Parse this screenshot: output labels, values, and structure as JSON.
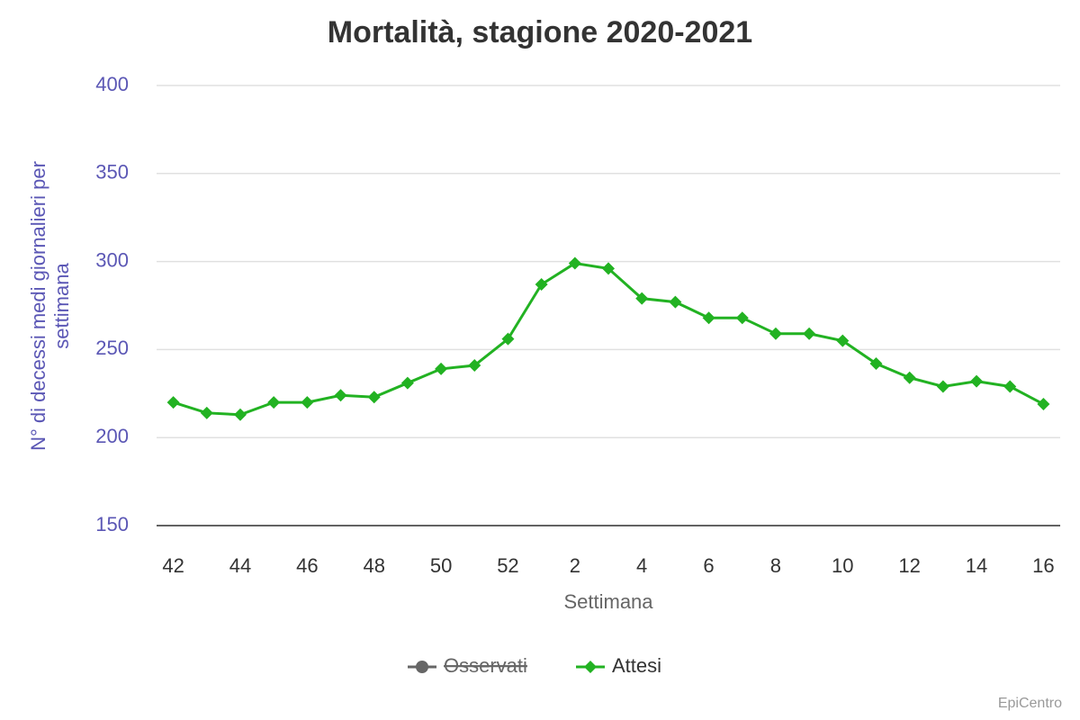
{
  "chart_data": {
    "type": "line",
    "title": "Mortalità, stagione 2020-2021",
    "x_label": "Settimana",
    "y_label": [
      "N° di decessi medi giornalieri per",
      "settimana"
    ],
    "credits": "EpiCentro",
    "categories": [
      "42",
      null,
      "44",
      null,
      "46",
      null,
      "48",
      null,
      "50",
      null,
      "52",
      null,
      "2",
      null,
      "4",
      null,
      "6",
      null,
      "8",
      null,
      "10",
      null,
      "12",
      null,
      "14",
      null,
      "16"
    ],
    "series": [
      {
        "name": "Osservati",
        "color": "#666666",
        "visible": false
      },
      {
        "name": "Attesi",
        "color": "#22b222",
        "visible": true,
        "values": [
          220,
          214,
          213,
          220,
          220,
          224,
          223,
          231,
          239,
          241,
          256,
          287,
          299,
          296,
          279,
          277,
          268,
          268,
          259,
          259,
          255,
          242,
          234,
          229,
          232,
          229,
          219
        ]
      }
    ],
    "ylim": [
      150,
      400
    ],
    "yticks": [
      150,
      200,
      250,
      300,
      350,
      400
    ],
    "grid": true
  }
}
